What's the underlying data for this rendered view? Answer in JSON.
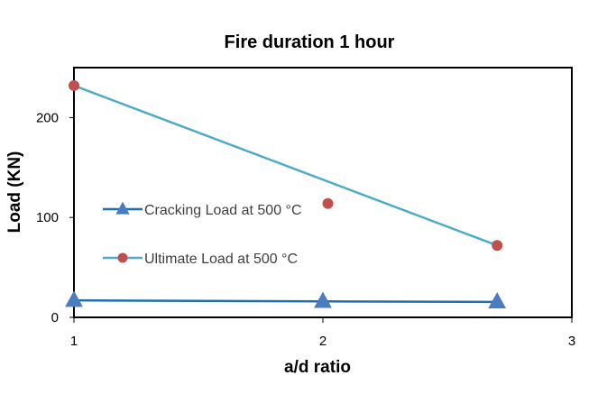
{
  "chart_data": {
    "type": "line",
    "title": "Fire duration 1 hour",
    "xlabel": "a/d ratio",
    "ylabel": "Load (KN)",
    "xlim": [
      1,
      3
    ],
    "ylim": [
      0,
      250
    ],
    "xticks": [
      1,
      2,
      3
    ],
    "yticks": [
      0,
      100,
      200
    ],
    "grid": false,
    "legend_position": "center-left",
    "series": [
      {
        "name": "Cracking Load at 500 °C",
        "color": "#1f6fad",
        "marker": "triangle",
        "marker_color": "#4a7cc0",
        "line": true,
        "points": [
          [
            1,
            17
          ],
          [
            2,
            16
          ],
          [
            2.7,
            15.5
          ]
        ]
      },
      {
        "name": "Ultimate Load at 500 °C",
        "color": "#4bacc6",
        "marker": "circle",
        "marker_color": "#c0504d",
        "line": true,
        "line_points": [
          [
            1,
            232
          ],
          [
            2.7,
            72
          ]
        ],
        "points": [
          [
            1,
            232
          ],
          [
            2.02,
            114
          ],
          [
            2.7,
            72
          ]
        ]
      }
    ]
  }
}
